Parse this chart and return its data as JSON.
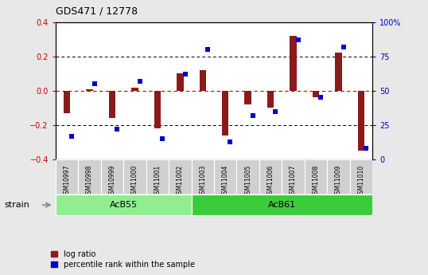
{
  "title": "GDS471 / 12778",
  "samples": [
    "GSM10997",
    "GSM10998",
    "GSM10999",
    "GSM11000",
    "GSM11001",
    "GSM11002",
    "GSM11003",
    "GSM11004",
    "GSM11005",
    "GSM11006",
    "GSM11007",
    "GSM11008",
    "GSM11009",
    "GSM11010"
  ],
  "log_ratio": [
    -0.13,
    0.01,
    -0.16,
    0.02,
    -0.22,
    0.1,
    0.12,
    -0.26,
    -0.08,
    -0.1,
    0.32,
    -0.04,
    0.22,
    -0.35
  ],
  "percentile": [
    17,
    55,
    22,
    57,
    15,
    62,
    80,
    13,
    32,
    35,
    87,
    45,
    82,
    8
  ],
  "groups": [
    {
      "label": "AcB55",
      "start": 0,
      "end": 5,
      "color": "#90EE90"
    },
    {
      "label": "AcB61",
      "start": 6,
      "end": 13,
      "color": "#3BCC3B"
    }
  ],
  "bar_color": "#8B1A1A",
  "dot_color": "#0000CC",
  "ylim": [
    -0.4,
    0.4
  ],
  "yticks_left": [
    -0.4,
    -0.2,
    0.0,
    0.2,
    0.4
  ],
  "right_yticks_pct": [
    0,
    25,
    50,
    75,
    100
  ],
  "right_ylabels": [
    "0",
    "25",
    "50",
    "75",
    "100%"
  ],
  "hline_color": "#CC0000",
  "dotline_color": "black",
  "background_color": "#E8E8E8",
  "plot_bg": "white",
  "left_tick_color": "#CC0000",
  "right_tick_color": "#0000CC",
  "strain_label": "strain",
  "legend_entries": [
    "log ratio",
    "percentile rank within the sample"
  ]
}
